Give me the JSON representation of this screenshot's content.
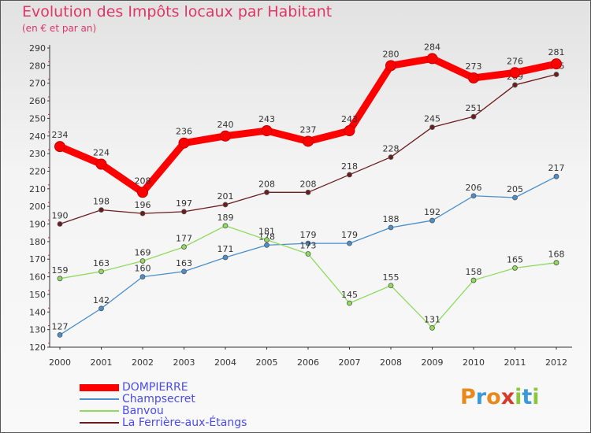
{
  "title": "Evolution des Impôts locaux par Habitant",
  "subtitle": "(en € et par an)",
  "logo": {
    "letters": [
      {
        "ch": "P",
        "color": "#e8891c"
      },
      {
        "ch": "r",
        "color": "#3a9ad9"
      },
      {
        "ch": "o",
        "color": "#e8891c"
      },
      {
        "ch": "x",
        "color": "#d63a2b"
      },
      {
        "ch": "i",
        "color": "#8cc63e"
      },
      {
        "ch": "t",
        "color": "#3a9ad9"
      },
      {
        "ch": "i",
        "color": "#8cc63e"
      }
    ]
  },
  "chart_data": {
    "type": "line",
    "title": "Evolution des Impôts locaux par Habitant",
    "subtitle": "(en € et par an)",
    "categories": [
      "2000",
      "2001",
      "2002",
      "2003",
      "2004",
      "2005",
      "2006",
      "2007",
      "2008",
      "2009",
      "2010",
      "2011",
      "2012"
    ],
    "ylim": [
      120,
      290
    ],
    "yticks": [
      120,
      130,
      140,
      150,
      160,
      170,
      180,
      190,
      200,
      210,
      220,
      230,
      240,
      250,
      260,
      270,
      280,
      290
    ],
    "grid": false,
    "legend": "bottom-left",
    "series": [
      {
        "name": "DOMPIERRE",
        "color": "#ff0000",
        "values": [
          234,
          224,
          208,
          236,
          240,
          243,
          237,
          243,
          280,
          284,
          273,
          276,
          281
        ],
        "labels": [
          "234",
          "224",
          "208",
          "236",
          "240",
          "243",
          "237",
          "243",
          "280",
          "284",
          "273",
          "276",
          "281"
        ]
      },
      {
        "name": "Champsecret",
        "color": "#4a8fcc",
        "values": [
          127,
          142,
          160,
          163,
          171,
          178,
          179,
          179,
          188,
          192,
          206,
          205,
          217
        ],
        "labels": [
          "127",
          "142",
          "160",
          "163",
          "171",
          "178",
          "179",
          "179",
          "188",
          "192",
          "206",
          "205",
          "217"
        ]
      },
      {
        "name": "Banvou",
        "color": "#8fdb5e",
        "values": [
          159,
          163,
          169,
          177,
          189,
          181,
          173,
          145,
          155,
          131,
          158,
          165,
          168
        ],
        "labels": [
          "159",
          "163",
          "169",
          "177",
          "189",
          "181",
          "173",
          "145",
          "155",
          "131",
          "158",
          "165",
          "168"
        ]
      },
      {
        "name": "La Ferrière-aux-Étangs",
        "color": "#6b1c1c",
        "values": [
          190,
          198,
          196,
          197,
          201,
          208,
          208,
          218,
          228,
          245,
          251,
          269,
          275
        ],
        "labels": [
          "190",
          "198",
          "196",
          "197",
          "201",
          "208",
          "208",
          "218",
          "228",
          "245",
          "251",
          "269",
          "275"
        ]
      }
    ]
  }
}
